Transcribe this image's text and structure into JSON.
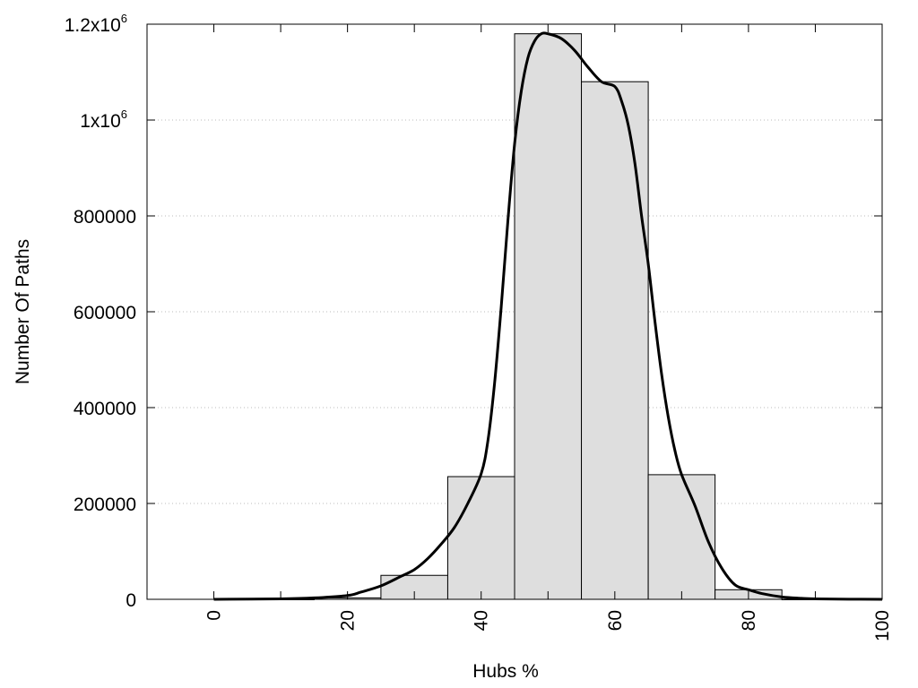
{
  "chart_data": {
    "type": "bar",
    "title": "",
    "xlabel": "Hubs %",
    "ylabel": "Number Of Paths",
    "xlim": [
      -10,
      100
    ],
    "ylim": [
      0,
      1200000
    ],
    "grid": true,
    "x_ticks": [
      0,
      20,
      40,
      60,
      80,
      100
    ],
    "y_ticks": [
      {
        "value": 0,
        "label": "0"
      },
      {
        "value": 200000,
        "label": "200000"
      },
      {
        "value": 400000,
        "label": "400000"
      },
      {
        "value": 600000,
        "label": "600000"
      },
      {
        "value": 800000,
        "label": "800000"
      },
      {
        "value": 1000000,
        "label": "1x10",
        "exp": "6"
      },
      {
        "value": 1200000,
        "label": "1.2x10",
        "exp": "6"
      }
    ],
    "bars": [
      {
        "x": 10,
        "value": 0
      },
      {
        "x": 20,
        "value": 3000
      },
      {
        "x": 30,
        "value": 50000
      },
      {
        "x": 40,
        "value": 256000
      },
      {
        "x": 50,
        "value": 1180000
      },
      {
        "x": 60,
        "value": 1080000
      },
      {
        "x": 70,
        "value": 260000
      },
      {
        "x": 80,
        "value": 20000
      },
      {
        "x": 90,
        "value": 0
      }
    ],
    "bar_width": 10,
    "curve": {
      "x": [
        0,
        10,
        15,
        20,
        22,
        25,
        28,
        30,
        32,
        34,
        36,
        38,
        40,
        41,
        42,
        43,
        44,
        45,
        46,
        47,
        48,
        49,
        50,
        52,
        54,
        56,
        58,
        60,
        61,
        62,
        63,
        64,
        65,
        66,
        67,
        68,
        69,
        70,
        72,
        74,
        76,
        78,
        80,
        82,
        85,
        88,
        90,
        95,
        100
      ],
      "y": [
        0,
        1000,
        3000,
        8000,
        15000,
        28000,
        48000,
        62000,
        85000,
        115000,
        150000,
        200000,
        262000,
        330000,
        450000,
        610000,
        790000,
        950000,
        1060000,
        1130000,
        1165000,
        1180000,
        1180000,
        1170000,
        1145000,
        1110000,
        1080000,
        1070000,
        1040000,
        990000,
        910000,
        800000,
        700000,
        580000,
        470000,
        380000,
        310000,
        260000,
        195000,
        120000,
        65000,
        30000,
        20000,
        12000,
        5000,
        2000,
        1000,
        300,
        0
      ],
      "color": "#000000"
    },
    "bar_color": "#dedede",
    "bar_edge_color": "#000000"
  }
}
